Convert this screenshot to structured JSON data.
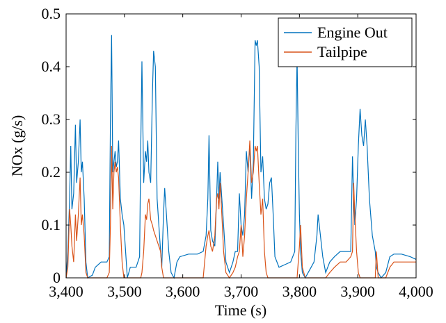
{
  "chart_data": {
    "type": "line",
    "xlabel": "Time (s)",
    "ylabel": "NOx (g/s)",
    "x": [
      3400,
      3403,
      3406,
      3408,
      3410,
      3413,
      3416,
      3418,
      3421,
      3424,
      3426,
      3428,
      3431,
      3434,
      3437,
      3445,
      3450,
      3460,
      3470,
      3474,
      3476,
      3478,
      3480,
      3482,
      3484,
      3486,
      3488,
      3490,
      3493,
      3496,
      3499,
      3502,
      3505,
      3510,
      3515,
      3520,
      3526,
      3528,
      3530,
      3533,
      3536,
      3538,
      3540,
      3542,
      3545,
      3548,
      3550,
      3553,
      3556,
      3559,
      3562,
      3564,
      3567,
      3569,
      3572,
      3576,
      3580,
      3585,
      3590,
      3595,
      3610,
      3625,
      3635,
      3640,
      3643,
      3645,
      3648,
      3651,
      3655,
      3658,
      3660,
      3662,
      3664,
      3667,
      3670,
      3674,
      3680,
      3686,
      3690,
      3694,
      3697,
      3700,
      3703,
      3706,
      3709,
      3712,
      3715,
      3718,
      3721,
      3724,
      3726,
      3728,
      3731,
      3734,
      3737,
      3740,
      3743,
      3746,
      3749,
      3752,
      3755,
      3758,
      3765,
      3775,
      3785,
      3792,
      3794,
      3796,
      3798,
      3800,
      3802,
      3805,
      3810,
      3815,
      3820,
      3825,
      3830,
      3832,
      3835,
      3840,
      3845,
      3852,
      3860,
      3870,
      3880,
      3888,
      3891,
      3893,
      3895,
      3898,
      3901,
      3904,
      3907,
      3910,
      3913,
      3916,
      3920,
      3925,
      3930,
      3932,
      3935,
      3940,
      3948,
      3955,
      3962,
      3975,
      3990,
      4000
    ],
    "series": [
      {
        "name": "Engine Out",
        "color": "#0072bd",
        "values": [
          0.0,
          0.05,
          0.15,
          0.25,
          0.13,
          0.16,
          0.29,
          0.18,
          0.22,
          0.3,
          0.2,
          0.22,
          0.15,
          0.03,
          0.0,
          0.005,
          0.02,
          0.03,
          0.03,
          0.04,
          0.3,
          0.46,
          0.2,
          0.22,
          0.24,
          0.21,
          0.22,
          0.26,
          0.15,
          0.12,
          0.1,
          0.05,
          0.0,
          0.02,
          0.02,
          0.02,
          0.04,
          0.25,
          0.41,
          0.18,
          0.24,
          0.22,
          0.26,
          0.2,
          0.18,
          0.35,
          0.43,
          0.4,
          0.15,
          0.1,
          0.05,
          0.02,
          0.12,
          0.17,
          0.12,
          0.05,
          0.01,
          0.0,
          0.03,
          0.04,
          0.045,
          0.045,
          0.05,
          0.08,
          0.15,
          0.27,
          0.09,
          0.07,
          0.06,
          0.15,
          0.22,
          0.15,
          0.2,
          0.15,
          0.1,
          0.03,
          0.01,
          0.03,
          0.05,
          0.05,
          0.16,
          0.1,
          0.08,
          0.12,
          0.24,
          0.2,
          0.25,
          0.15,
          0.22,
          0.45,
          0.44,
          0.45,
          0.4,
          0.2,
          0.23,
          0.15,
          0.13,
          0.14,
          0.18,
          0.19,
          0.12,
          0.04,
          0.02,
          0.025,
          0.03,
          0.05,
          0.28,
          0.42,
          0.25,
          0.12,
          0.05,
          0.01,
          0.0,
          0.01,
          0.02,
          0.03,
          0.08,
          0.12,
          0.09,
          0.04,
          0.01,
          0.03,
          0.04,
          0.05,
          0.05,
          0.05,
          0.23,
          0.15,
          0.1,
          0.15,
          0.25,
          0.32,
          0.27,
          0.25,
          0.3,
          0.25,
          0.15,
          0.08,
          0.05,
          0.02,
          0.01,
          0.0,
          0.01,
          0.04,
          0.045,
          0.045,
          0.04,
          0.035
        ]
      },
      {
        "name": "Tailpipe",
        "color": "#d95319",
        "values": [
          0.0,
          0.02,
          0.13,
          0.1,
          0.06,
          0.03,
          0.12,
          0.07,
          0.12,
          0.19,
          0.1,
          0.12,
          0.08,
          0.01,
          0.0,
          0.0,
          0.0,
          0.0,
          0.0,
          0.01,
          0.1,
          0.25,
          0.13,
          0.2,
          0.22,
          0.2,
          0.21,
          0.19,
          0.1,
          0.03,
          0.0,
          0.0,
          0.0,
          0.0,
          0.0,
          0.0,
          0.0,
          0.0,
          0.01,
          0.05,
          0.12,
          0.11,
          0.14,
          0.15,
          0.11,
          0.1,
          0.09,
          0.08,
          0.07,
          0.06,
          0.05,
          0.02,
          0.0,
          0.0,
          0.0,
          0.0,
          0.0,
          0.0,
          0.0,
          0.0,
          0.0,
          0.0,
          0.0,
          0.06,
          0.08,
          0.09,
          0.06,
          0.05,
          0.08,
          0.15,
          0.16,
          0.13,
          0.18,
          0.12,
          0.05,
          0.01,
          0.0,
          0.01,
          0.02,
          0.04,
          0.05,
          0.1,
          0.04,
          0.08,
          0.15,
          0.2,
          0.26,
          0.18,
          0.2,
          0.25,
          0.24,
          0.25,
          0.18,
          0.12,
          0.15,
          0.05,
          0.01,
          0.0,
          0.0,
          0.0,
          0.0,
          0.0,
          0.0,
          0.0,
          0.0,
          0.0,
          0.0,
          0.0,
          0.03,
          0.06,
          0.1,
          0.02,
          0.0,
          0.0,
          0.0,
          0.0,
          0.0,
          0.0,
          0.0,
          0.0,
          0.0,
          0.01,
          0.02,
          0.03,
          0.03,
          0.04,
          0.05,
          0.18,
          0.12,
          0.05,
          0.01,
          0.0,
          0.0,
          0.0,
          0.0,
          0.0,
          0.0,
          0.0,
          0.0,
          0.05,
          0.0,
          0.0,
          0.0,
          0.02,
          0.03,
          0.03,
          0.03,
          0.03
        ]
      }
    ],
    "xlim": [
      3400,
      4000
    ],
    "xticks": [
      {
        "value": 3400,
        "label": "3,400"
      },
      {
        "value": 3500,
        "label": "3,500"
      },
      {
        "value": 3600,
        "label": "3,600"
      },
      {
        "value": 3700,
        "label": "3,700"
      },
      {
        "value": 3800,
        "label": "3,800"
      },
      {
        "value": 3900,
        "label": "3,900"
      },
      {
        "value": 4000,
        "label": "4,000"
      }
    ],
    "ylim": [
      0,
      0.5
    ],
    "yticks": [
      0,
      0.1,
      0.2,
      0.3,
      0.4,
      0.5
    ],
    "legend": "upper right",
    "grid": false
  }
}
